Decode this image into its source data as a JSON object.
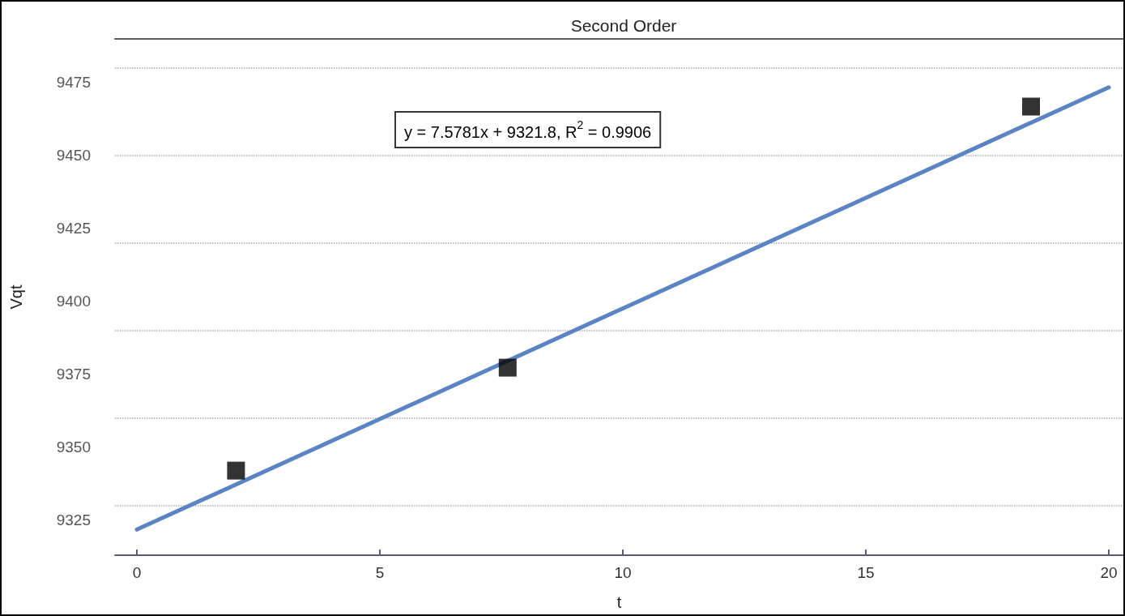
{
  "chart_data": {
    "type": "scatter",
    "title": "Second Order",
    "xlabel": "t",
    "ylabel": "Vqt",
    "annotations": [
      "y = 7.5781x + 9321.8, R$^{2}$ = 0.9906"
    ],
    "series": [
      {
        "color": "#000000",
        "marker": "square",
        "x": [
          2.04,
          7.63,
          18.4
        ],
        "values": [
          9342.0,
          9377.3,
          9466.8
        ]
      },
      {
        "type": "line",
        "color": "#5b84c4",
        "marker": "none",
        "line_style": "solid",
        "x": [
          0,
          20
        ],
        "values": [
          9321.8,
          9473.4
        ]
      }
    ],
    "xlim": [
      -0.45,
      20.3
    ],
    "xticks": [
      0,
      5,
      10,
      15,
      20
    ],
    "ylim": [
      9313,
      9490
    ],
    "yticks": [
      9325,
      9350,
      9375,
      9400,
      9425,
      9450,
      9475
    ],
    "grid": "y"
  }
}
